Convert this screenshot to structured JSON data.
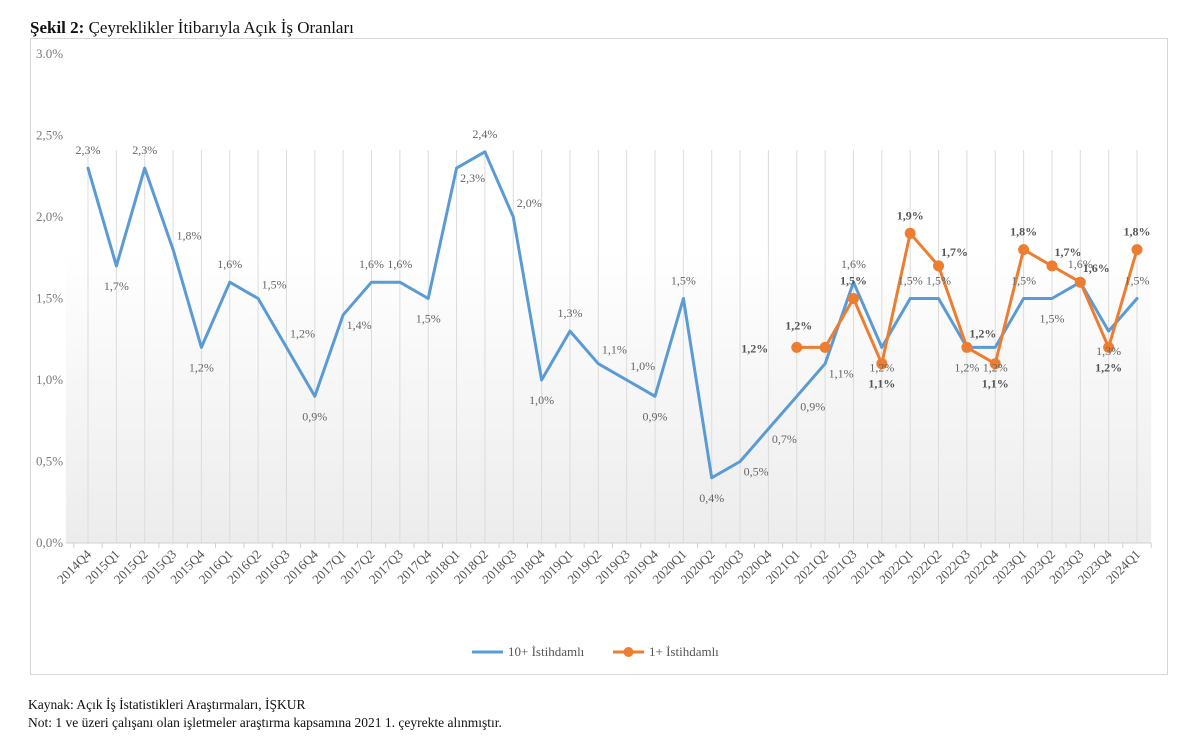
{
  "figure": {
    "title_bold": "Şekil 2:",
    "title_rest": " Çeyreklikler İtibarıyla Açık İş Oranları",
    "source": "Kaynak: Açık İş İstatistikleri Araştırmaları, İŞKUR",
    "note": "Not: 1 ve üzeri çalışanı olan işletmeler araştırma kapsamına 2021 1. çeyrekte alınmıştır."
  },
  "chart_data": {
    "type": "line",
    "title": "Çeyreklikler İtibarıyla Açık İş Oranları",
    "xlabel": "",
    "ylabel": "",
    "ylim": [
      0,
      3.0
    ],
    "yticks": [
      0,
      0.5,
      1.0,
      1.5,
      2.0,
      2.5,
      3.0
    ],
    "ytick_labels": [
      "0,0%",
      "0,5%",
      "1,0%",
      "1,5%",
      "2,0%",
      "2,5%",
      "3.0%"
    ],
    "grid": "vertical",
    "legend_position": "bottom-center",
    "categories": [
      "2014Q4",
      "2015Q1",
      "2015Q2",
      "2015Q3",
      "2015Q4",
      "2016Q1",
      "2016Q2",
      "2016Q3",
      "2016Q4",
      "2017Q1",
      "2017Q2",
      "2017Q3",
      "2017Q4",
      "2018Q1",
      "2018Q2",
      "2018Q3",
      "2018Q4",
      "2019Q1",
      "2019Q2",
      "2019Q3",
      "2019Q4",
      "2020Q1",
      "2020Q2",
      "2020Q3",
      "2020Q4",
      "2021Q1",
      "2021Q2",
      "2021Q3",
      "2021Q4",
      "2022Q1",
      "2022Q2",
      "2022Q3",
      "2022Q4",
      "2023Q1",
      "2023Q2",
      "2023Q3",
      "2023Q4",
      "2024Q1"
    ],
    "series": [
      {
        "name": "10+ İstihdamlı",
        "color": "#5b9bd5",
        "markers": false,
        "values": [
          2.3,
          1.7,
          2.3,
          1.8,
          1.2,
          1.6,
          1.5,
          1.2,
          0.9,
          1.4,
          1.6,
          1.6,
          1.5,
          2.3,
          2.4,
          2.0,
          1.0,
          1.3,
          1.1,
          1.0,
          0.9,
          1.5,
          0.4,
          0.5,
          0.7,
          0.9,
          1.1,
          1.6,
          1.2,
          1.5,
          1.5,
          1.2,
          1.2,
          1.5,
          1.5,
          1.6,
          1.3,
          1.5
        ],
        "labels": [
          "2,3%",
          "1,7%",
          "2,3%",
          "1,8%",
          "1,2%",
          "1,6%",
          "1,5%",
          "1,2%",
          "0,9%",
          "1,4%",
          "1,6%",
          "1,6%",
          "1,5%",
          "2,3%",
          "2,4%",
          "2,0%",
          "1,0%",
          "1,3%",
          "1,1%",
          "1,0%",
          "0,9%",
          "1,5%",
          "0,4%",
          "0,5%",
          "0,7%",
          "0,9%",
          "1,1%",
          "1,6%",
          "1,2%",
          "1,5%",
          "1,5%",
          "1,2%",
          "1,2%",
          "1,5%",
          "1,5%",
          "1,6%",
          "1,3%",
          "1,5%"
        ]
      },
      {
        "name": "1+ İstihdamlı",
        "color": "#ed7d31",
        "markers": true,
        "values": [
          null,
          null,
          null,
          null,
          null,
          null,
          null,
          null,
          null,
          null,
          null,
          null,
          null,
          null,
          null,
          null,
          null,
          null,
          null,
          null,
          null,
          null,
          null,
          null,
          null,
          1.2,
          1.2,
          1.5,
          1.1,
          1.9,
          1.7,
          1.2,
          1.1,
          1.8,
          1.7,
          1.6,
          1.2,
          1.8
        ],
        "labels": [
          null,
          null,
          null,
          null,
          null,
          null,
          null,
          null,
          null,
          null,
          null,
          null,
          null,
          null,
          null,
          null,
          null,
          null,
          null,
          null,
          null,
          null,
          null,
          null,
          null,
          "1,2%",
          "1,2%",
          "1,5%",
          "1,1%",
          "1,9%",
          "1,7%",
          "1,2%",
          "1,1%",
          "1,8%",
          "1,7%",
          "1,6%",
          "1,2%",
          "1,8%"
        ]
      }
    ]
  }
}
